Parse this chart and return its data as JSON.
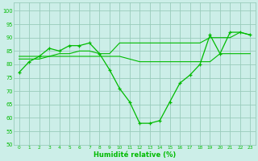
{
  "xlabel": "Humidité relative (%)",
  "xlim_min": -0.5,
  "xlim_max": 23.5,
  "ylim_min": 50,
  "ylim_max": 103,
  "yticks": [
    50,
    55,
    60,
    65,
    70,
    75,
    80,
    85,
    90,
    95,
    100
  ],
  "xticks": [
    0,
    1,
    2,
    3,
    4,
    5,
    6,
    7,
    8,
    9,
    10,
    11,
    12,
    13,
    14,
    15,
    16,
    17,
    18,
    19,
    20,
    21,
    22,
    23
  ],
  "bg_color": "#cceee8",
  "grid_color": "#99ccbb",
  "line_color": "#00bb00",
  "series_main_x": [
    0,
    1,
    2,
    3,
    4,
    5,
    6,
    7,
    8,
    9,
    10,
    11,
    12,
    13,
    14,
    15,
    16,
    17,
    18,
    19,
    20,
    21,
    22,
    23
  ],
  "series_main_y": [
    77,
    81,
    83,
    86,
    85,
    87,
    87,
    88,
    84,
    78,
    71,
    66,
    58,
    58,
    59,
    66,
    73,
    76,
    80,
    91,
    84,
    92,
    92,
    91
  ],
  "series_flat1_x": [
    0,
    1,
    2,
    3,
    4,
    5,
    6,
    7,
    8,
    9,
    10,
    11,
    12,
    13,
    14,
    15,
    16,
    17,
    18,
    19,
    20,
    21,
    22,
    23
  ],
  "series_flat1_y": [
    82,
    82,
    82,
    83,
    83,
    83,
    83,
    83,
    83,
    83,
    83,
    82,
    81,
    81,
    81,
    81,
    81,
    81,
    81,
    81,
    84,
    84,
    84,
    84
  ],
  "series_flat2_x": [
    0,
    1,
    2,
    3,
    4,
    5,
    6,
    7,
    8,
    9,
    10,
    11,
    12,
    13,
    14,
    15,
    16,
    17,
    18,
    19,
    20,
    21,
    22,
    23
  ],
  "series_flat2_y": [
    83,
    83,
    83,
    83,
    84,
    84,
    85,
    85,
    84,
    84,
    88,
    88,
    88,
    88,
    88,
    88,
    88,
    88,
    88,
    90,
    90,
    90,
    92,
    91
  ]
}
